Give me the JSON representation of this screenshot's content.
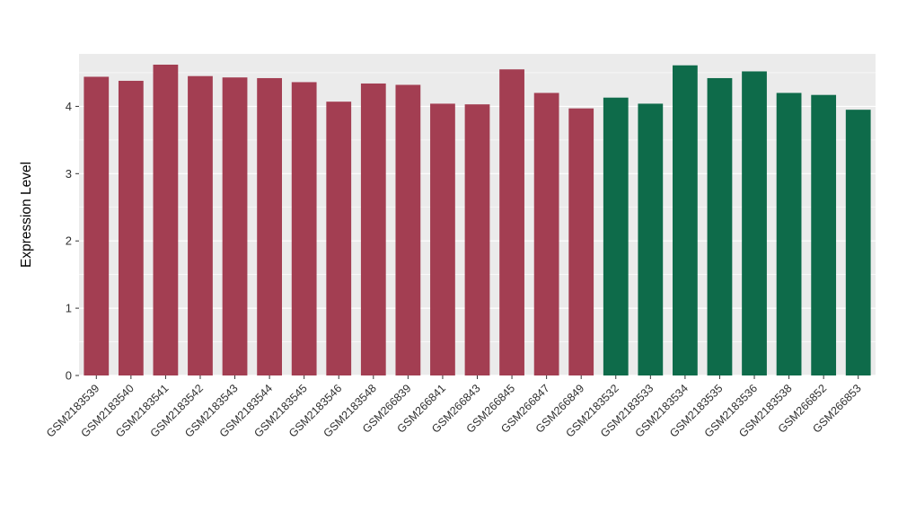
{
  "chart_data": {
    "type": "bar",
    "title": "",
    "xlabel": "",
    "ylabel": "Expression Level",
    "ylim": [
      0,
      4.78
    ],
    "yticks": [
      0,
      1,
      2,
      3,
      4
    ],
    "grid": "on",
    "legend_position": "none",
    "panel_bg": "#EBEBEB",
    "grid_color": "#FFFFFF",
    "axis_text_color": "#303030",
    "categories": [
      "GSM2183539",
      "GSM2183540",
      "GSM2183541",
      "GSM2183542",
      "GSM2183543",
      "GSM2183544",
      "GSM2183545",
      "GSM2183546",
      "GSM2183548",
      "GSM266839",
      "GSM266841",
      "GSM266843",
      "GSM266845",
      "GSM266847",
      "GSM266849",
      "GSM2183532",
      "GSM2183533",
      "GSM2183534",
      "GSM2183535",
      "GSM2183536",
      "GSM2183538",
      "GSM266852",
      "GSM266853"
    ],
    "values": [
      4.44,
      4.38,
      4.62,
      4.45,
      4.43,
      4.42,
      4.36,
      4.07,
      4.34,
      4.32,
      4.04,
      4.03,
      4.55,
      4.2,
      3.97,
      4.13,
      4.04,
      4.61,
      4.42,
      4.52,
      4.2,
      4.17,
      3.95
    ],
    "bar_groups": [
      0,
      0,
      0,
      0,
      0,
      0,
      0,
      0,
      0,
      0,
      0,
      0,
      0,
      0,
      0,
      1,
      1,
      1,
      1,
      1,
      1,
      1,
      1
    ],
    "group_colors": [
      "#A33E52",
      "#0E6B4A"
    ]
  }
}
